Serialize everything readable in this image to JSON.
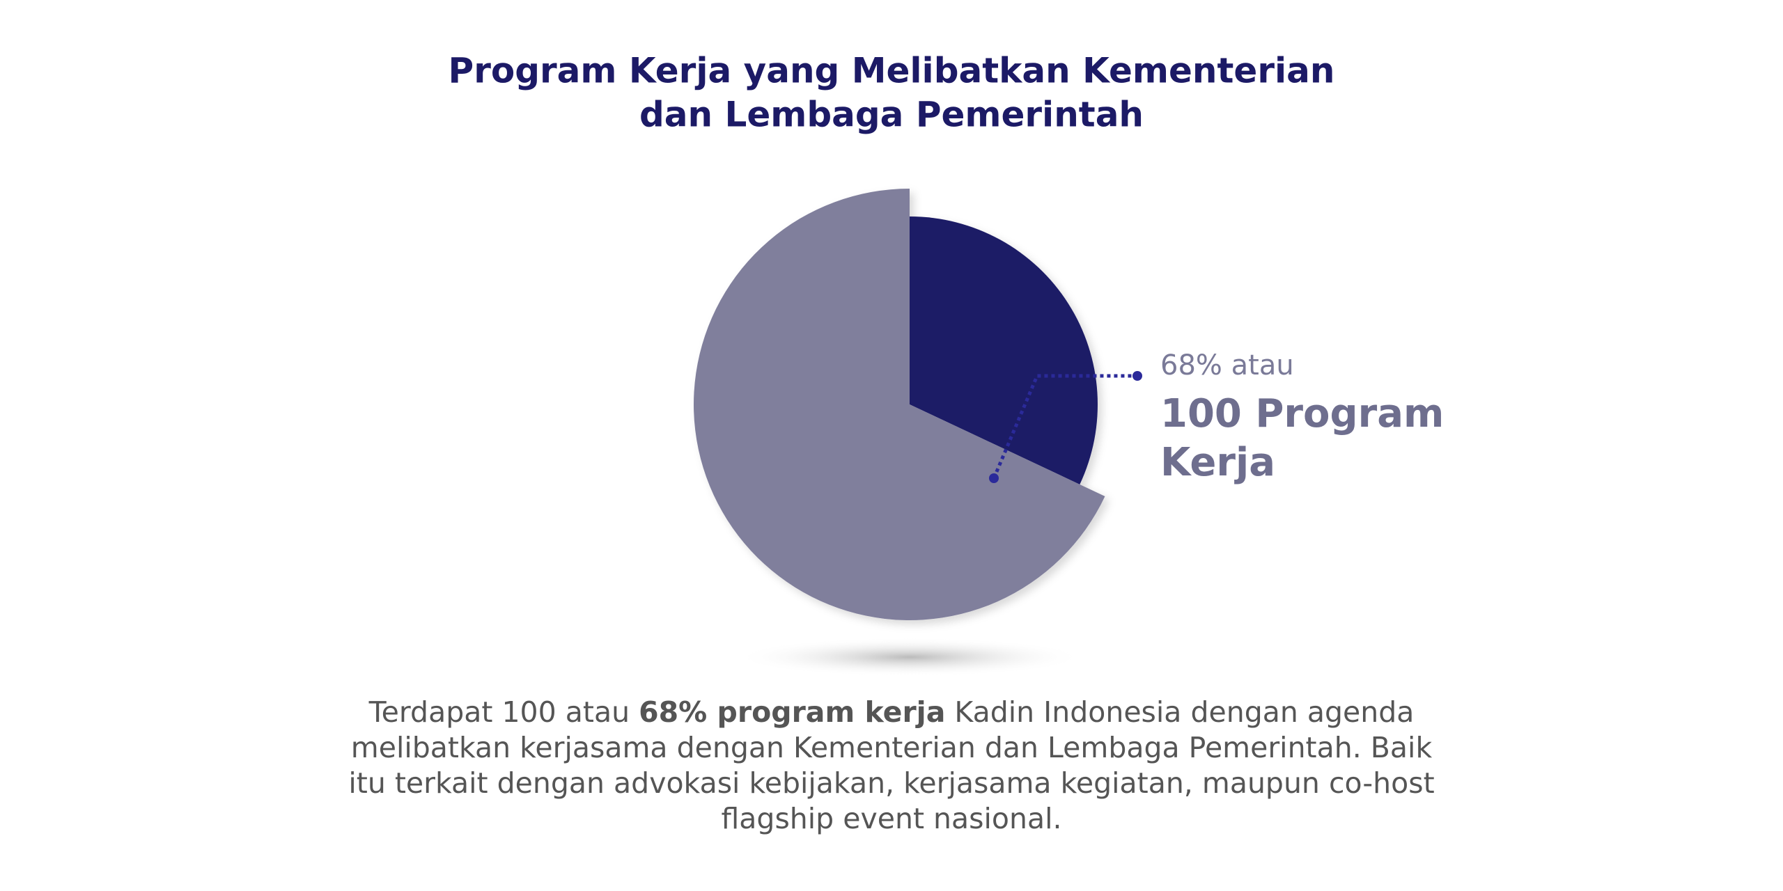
{
  "chart_data": {
    "type": "pie",
    "title": [
      "Program Kerja yang Melibatkan Kementerian",
      "dan Lembaga Pemerintah"
    ],
    "values": [
      32,
      68
    ],
    "colors": [
      "#1c1a66",
      "#807f9c"
    ],
    "annotation": {
      "small": "68% atau",
      "large": "100 Program Kerja"
    },
    "description": {
      "before": "Terdapat 100 atau ",
      "bold": "68% program kerja",
      "after": " Kadin Indonesia dengan agenda melibatkan kerjasama dengan Kementerian dan Lembaga Pemerintah. Baik itu terkait dengan advokasi kebijakan, kerjasama kegiatan, maupun co-host flagship event nasional."
    }
  }
}
